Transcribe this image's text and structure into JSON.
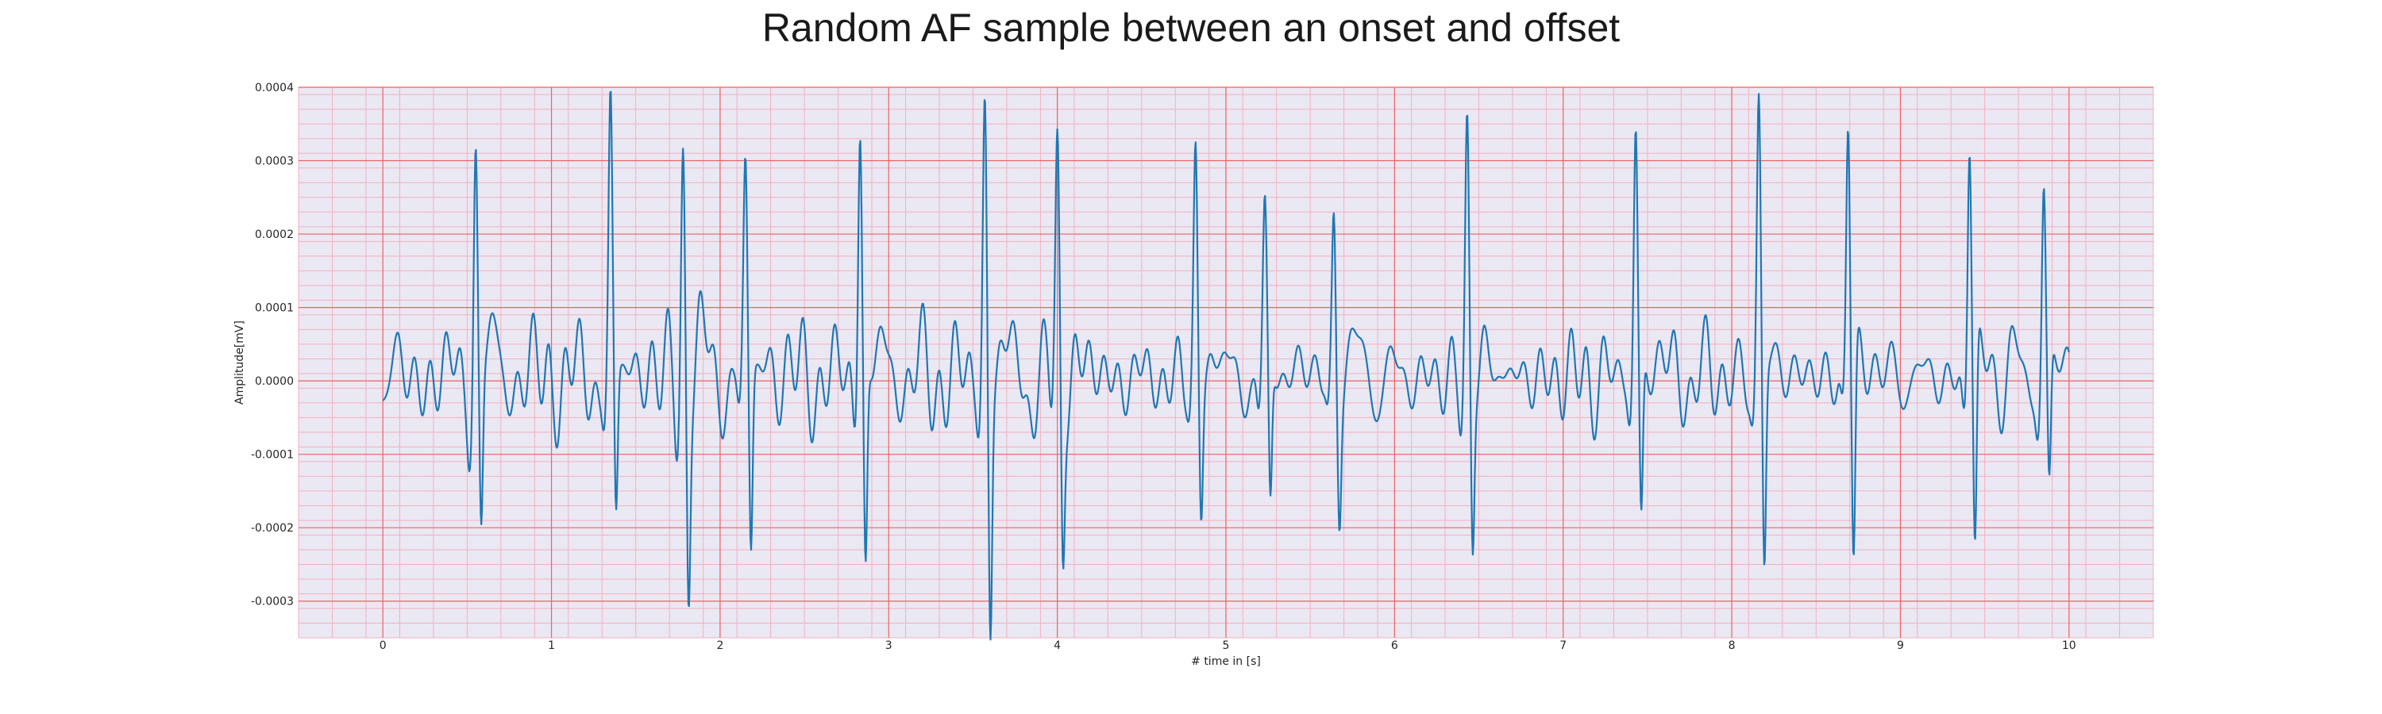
{
  "chart_data": {
    "type": "line",
    "title": "Random AF sample between an onset and offset",
    "xlabel": "# time in [s]",
    "ylabel": "Amplitude[mV]",
    "xlim": [
      -0.5,
      10.5
    ],
    "ylim": [
      -0.00035,
      0.0004
    ],
    "x_ticks": [
      0,
      1,
      2,
      3,
      4,
      5,
      6,
      7,
      8,
      9,
      10
    ],
    "x_tick_labels": [
      "0",
      "1",
      "2",
      "3",
      "4",
      "5",
      "6",
      "7",
      "8",
      "9",
      "10"
    ],
    "y_ticks": [
      -0.0003,
      -0.0002,
      -0.0001,
      0.0,
      0.0001,
      0.0002,
      0.0003,
      0.0004
    ],
    "y_tick_labels": [
      "-0.0003",
      "-0.0002",
      "-0.0001",
      "0.0000",
      "0.0001",
      "0.0002",
      "0.0003",
      "0.0004"
    ],
    "grid": true,
    "minor_grid": true,
    "colors": {
      "line": "#1f77b4",
      "plot_background": "#eae8f3",
      "major_grid": "#f06060",
      "minor_grid": "#f3b0bf"
    },
    "beats": [
      {
        "t": 0.55,
        "r": 0.000323,
        "s": -0.000207
      },
      {
        "t": 1.35,
        "r": 0.000343,
        "s": -0.00021
      },
      {
        "t": 1.78,
        "r": 0.000306,
        "s": -0.000263
      },
      {
        "t": 2.15,
        "r": 0.000266,
        "s": -0.000252
      },
      {
        "t": 2.83,
        "r": 0.000365,
        "s": -0.00027
      },
      {
        "t": 3.57,
        "r": 0.000365,
        "s": -0.00032
      },
      {
        "t": 4.0,
        "r": 0.000276,
        "s": -0.000223
      },
      {
        "t": 4.82,
        "r": 0.000292,
        "s": -0.00017
      },
      {
        "t": 5.23,
        "r": 0.000197,
        "s": -0.000205
      },
      {
        "t": 5.64,
        "r": 0.000222,
        "s": -0.000155
      },
      {
        "t": 6.43,
        "r": 0.000326,
        "s": -0.000222
      },
      {
        "t": 7.43,
        "r": 0.000337,
        "s": -0.000215
      },
      {
        "t": 8.16,
        "r": 0.000369,
        "s": -0.000275
      },
      {
        "t": 8.69,
        "r": 0.000369,
        "s": -0.000265
      },
      {
        "t": 9.41,
        "r": 0.000342,
        "s": -0.000272
      },
      {
        "t": 9.85,
        "r": 0.000266,
        "s": -0.000177
      }
    ]
  }
}
